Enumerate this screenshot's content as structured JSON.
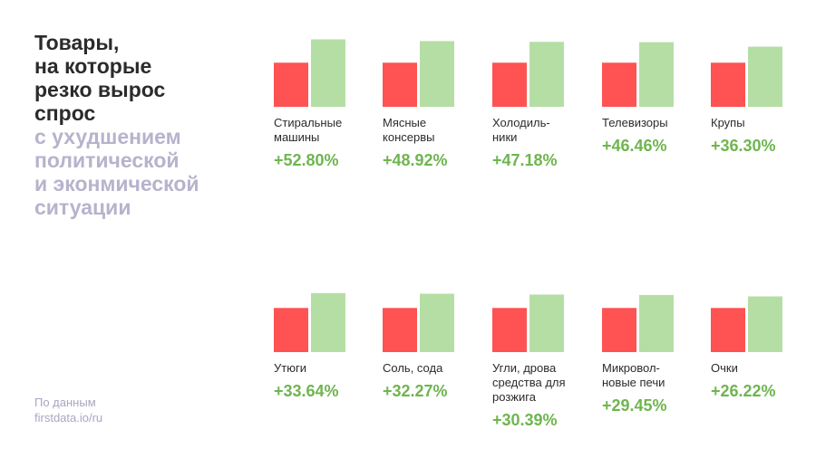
{
  "title": {
    "main": "Товары,\nна которые\nрезко вырос\nспрос",
    "sub": "с ухудшением\nполитической\nи эконмической\nситуации"
  },
  "source": "По данным\nfirstdata.io/ru",
  "colors": {
    "before": "#ff5252",
    "after": "#b5dea4",
    "value": "#6fb54f"
  },
  "chart_data": {
    "type": "bar",
    "series": [
      {
        "values": [
          100,
          100,
          100,
          100,
          100,
          100,
          100,
          100,
          100,
          100
        ]
      },
      {
        "values": [
          152.8,
          148.92,
          147.18,
          146.46,
          136.3,
          133.64,
          132.27,
          130.39,
          129.45,
          126.22
        ]
      }
    ],
    "categories": [
      "Стиральные\nмашины",
      "Мясные\nконсервы",
      "Холодиль-\nники",
      "Телевизоры",
      "Крупы",
      "Утюги",
      "Соль, сода",
      "Угли, дрова\nсредства для\nрозжига",
      "Микровол-\nновые печи",
      "Очки"
    ],
    "growth_labels": [
      "+52.80%",
      "+48.92%",
      "+47.18%",
      "+46.46%",
      "+36.30%",
      "+33.64%",
      "+32.27%",
      "+30.39%",
      "+29.45%",
      "+26.22%"
    ]
  }
}
